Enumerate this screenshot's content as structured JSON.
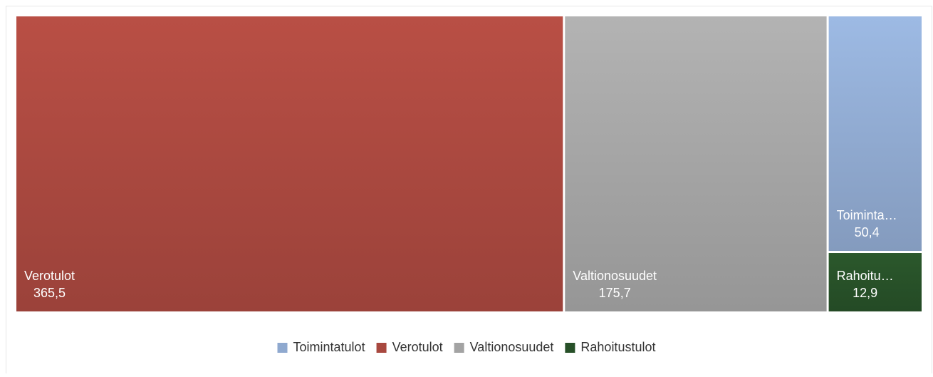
{
  "chart_data": {
    "type": "treemap",
    "categories": [
      "Toimintatulot",
      "Verotulot",
      "Valtionosuudet",
      "Rahoitustulot"
    ],
    "tile_labels": [
      "Toiminta…",
      "Verotulot",
      "Valtionosuudet",
      "Rahoitu…"
    ],
    "values": [
      50.4,
      365.5,
      175.7,
      12.9
    ],
    "value_labels": [
      "50,4",
      "365,5",
      "175,7",
      "12,9"
    ],
    "colors": [
      "#8fa9cf",
      "#a8483f",
      "#a3a3a3",
      "#275028"
    ],
    "legend": "bottom"
  }
}
